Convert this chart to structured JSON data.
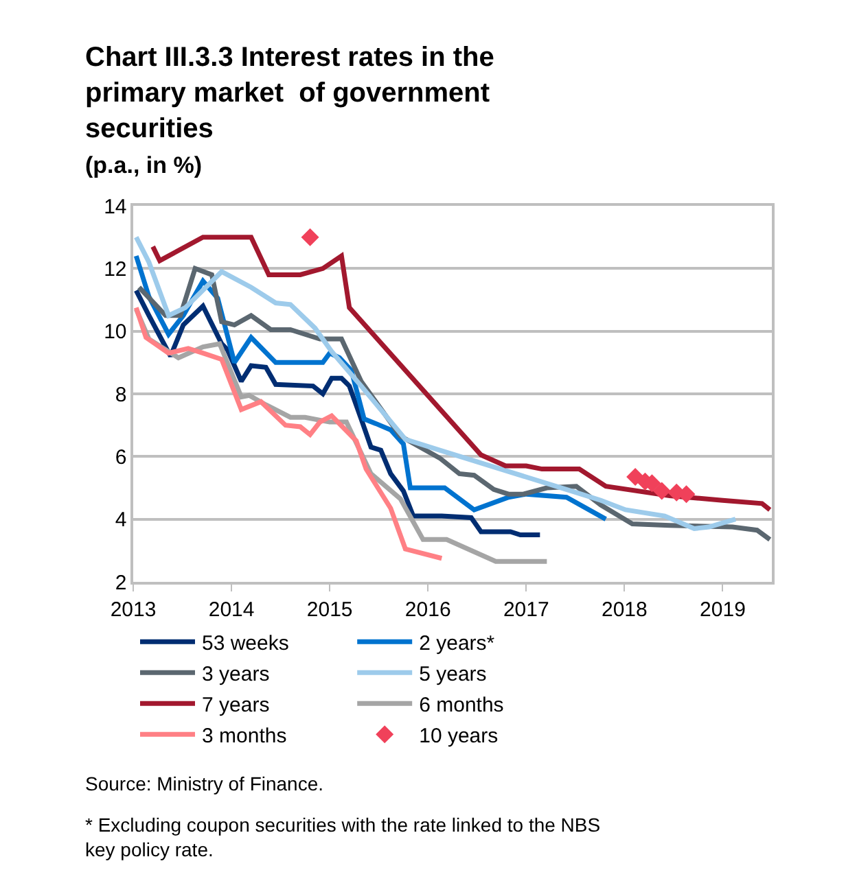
{
  "chart_data": {
    "type": "line",
    "title": "Chart III.3.3 Interest rates in the primary market  of government securities",
    "subtitle": "(p.a., in %)",
    "xlim": [
      2013,
      2019.5
    ],
    "xticks": [
      2013,
      2014,
      2015,
      2016,
      2017,
      2018,
      2019
    ],
    "ylim": [
      2,
      14
    ],
    "yticks": [
      2,
      4,
      6,
      8,
      10,
      12,
      14
    ],
    "grid": "y",
    "legend": "bottom",
    "marker": "none",
    "line_style": "solid",
    "series": [
      {
        "name": "53 weeks",
        "color": "#002d72",
        "x": [
          2013.03,
          2013.16,
          2013.38,
          2013.51,
          2013.71,
          2013.9,
          2013.96,
          2014.1,
          2014.2,
          2014.35,
          2014.45,
          2014.83,
          2014.93,
          2015.02,
          2015.12,
          2015.2,
          2015.32,
          2015.42,
          2015.52,
          2015.62,
          2015.75,
          2015.85,
          2016.14,
          2016.44,
          2016.54,
          2016.84,
          2016.94,
          2017.14
        ],
        "values": [
          11.3,
          10.5,
          9.2,
          10.2,
          10.8,
          9.6,
          9.4,
          8.4,
          8.9,
          8.85,
          8.3,
          8.25,
          8.0,
          8.5,
          8.5,
          8.25,
          7.2,
          6.3,
          6.2,
          5.45,
          4.9,
          4.1,
          4.1,
          4.05,
          3.6,
          3.6,
          3.5,
          3.5
        ]
      },
      {
        "name": "2 years*",
        "color": "#0073cf",
        "x": [
          2013.03,
          2013.16,
          2013.36,
          2013.51,
          2013.71,
          2013.86,
          2014.03,
          2014.2,
          2014.45,
          2014.93,
          2015.0,
          2015.1,
          2015.22,
          2015.35,
          2015.47,
          2015.62,
          2015.75,
          2015.82,
          2016.17,
          2016.47,
          2016.82,
          2017.0,
          2017.41,
          2017.81
        ],
        "values": [
          12.4,
          11.1,
          9.9,
          10.5,
          11.6,
          11.05,
          9.0,
          9.8,
          9.0,
          9.0,
          9.3,
          9.15,
          8.75,
          7.2,
          7.05,
          6.85,
          6.4,
          5.0,
          5.0,
          4.3,
          4.7,
          4.8,
          4.7,
          4.0
        ]
      },
      {
        "name": "3 years",
        "color": "#5b6770",
        "x": [
          2013.06,
          2013.33,
          2013.48,
          2013.63,
          2013.8,
          2013.9,
          2014.03,
          2014.2,
          2014.4,
          2014.6,
          2014.9,
          2015.12,
          2015.32,
          2015.72,
          2016.12,
          2016.32,
          2016.47,
          2016.67,
          2016.82,
          2016.97,
          2017.21,
          2017.51,
          2017.76,
          2018.08,
          2018.46,
          2019.1,
          2019.35,
          2019.48
        ],
        "values": [
          11.4,
          10.5,
          10.5,
          12.0,
          11.8,
          10.3,
          10.2,
          10.5,
          10.05,
          10.05,
          9.75,
          9.75,
          8.4,
          6.65,
          5.95,
          5.45,
          5.4,
          4.95,
          4.8,
          4.8,
          5.0,
          5.05,
          4.45,
          3.85,
          3.8,
          3.75,
          3.65,
          3.35
        ]
      },
      {
        "name": "5 years",
        "color": "#9dcbeb",
        "x": [
          2013.03,
          2013.16,
          2013.36,
          2013.53,
          2013.9,
          2014.2,
          2014.45,
          2014.6,
          2014.85,
          2015.02,
          2015.32,
          2015.77,
          2016.12,
          2017.51,
          2017.76,
          2018.01,
          2018.41,
          2018.71,
          2018.86,
          2019.13
        ],
        "values": [
          13.0,
          12.2,
          10.5,
          10.75,
          11.9,
          11.4,
          10.9,
          10.85,
          10.1,
          9.35,
          8.25,
          6.55,
          6.2,
          4.85,
          4.6,
          4.3,
          4.1,
          3.7,
          3.75,
          4.0
        ]
      },
      {
        "name": "7 years",
        "color": "#a2182e",
        "x": [
          2013.2,
          2013.27,
          2013.71,
          2014.2,
          2014.38,
          2014.7,
          2014.93,
          2015.12,
          2015.2,
          2016.54,
          2016.79,
          2017.0,
          2017.16,
          2017.54,
          2017.81,
          2018.46,
          2019.0,
          2019.4,
          2019.48
        ],
        "values": [
          12.7,
          12.25,
          13.0,
          13.0,
          11.8,
          11.8,
          12.0,
          12.4,
          10.75,
          6.05,
          5.7,
          5.7,
          5.6,
          5.6,
          5.05,
          4.75,
          4.6,
          4.5,
          4.3
        ]
      },
      {
        "name": "6 months",
        "color": "#a5a5a5",
        "x": [
          2013.03,
          2013.16,
          2013.46,
          2013.71,
          2013.88,
          2014.1,
          2014.18,
          2014.35,
          2014.6,
          2014.75,
          2015.0,
          2015.17,
          2015.42,
          2015.72,
          2015.95,
          2016.19,
          2016.69,
          2017.21
        ],
        "values": [
          10.7,
          9.75,
          9.15,
          9.5,
          9.6,
          7.9,
          7.95,
          7.65,
          7.25,
          7.25,
          7.1,
          7.1,
          5.45,
          4.65,
          3.35,
          3.35,
          2.65,
          2.65
        ]
      },
      {
        "name": "3 months",
        "color": "#ff8085",
        "x": [
          2013.03,
          2013.13,
          2013.36,
          2013.56,
          2013.71,
          2013.9,
          2014.1,
          2014.3,
          2014.55,
          2014.7,
          2014.8,
          2014.9,
          2015.02,
          2015.27,
          2015.37,
          2015.62,
          2015.77,
          2016.14
        ],
        "values": [
          10.75,
          9.8,
          9.3,
          9.45,
          9.3,
          9.1,
          7.5,
          7.75,
          7.0,
          6.95,
          6.7,
          7.1,
          7.3,
          6.5,
          5.6,
          4.35,
          3.05,
          2.75
        ]
      },
      {
        "name": "10 years",
        "color": "#f0415a",
        "type": "scatter",
        "marker": "diamond",
        "x": [
          2014.8,
          2018.11,
          2018.21,
          2018.28,
          2018.38,
          2018.53,
          2018.63
        ],
        "values": [
          13.0,
          5.35,
          5.2,
          5.15,
          4.9,
          4.85,
          4.8
        ]
      }
    ],
    "annotations": [
      "Source: Ministry of Finance.",
      "* Excluding coupon securities with the rate linked to the NBS key policy rate."
    ]
  }
}
